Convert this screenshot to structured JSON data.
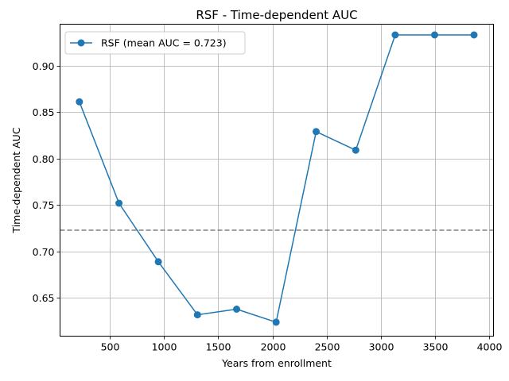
{
  "chart_data": {
    "type": "line",
    "title": "RSF - Time-dependent AUC",
    "xlabel": "Years from enrollment",
    "ylabel": "Time-dependent AUC",
    "xlim": [
      40,
      4040
    ],
    "ylim": [
      0.609,
      0.9445
    ],
    "xticks": [
      500,
      1000,
      1500,
      2000,
      2500,
      3000,
      3500,
      4000
    ],
    "xtick_labels": [
      "500",
      "1000",
      "1500",
      "2000",
      "2500",
      "3000",
      "3500",
      "4000"
    ],
    "yticks": [
      0.65,
      0.7,
      0.75,
      0.8,
      0.85,
      0.9
    ],
    "ytick_labels": [
      "0.65",
      "0.70",
      "0.75",
      "0.80",
      "0.85",
      "0.90"
    ],
    "grid": true,
    "legend_position": "top-left",
    "series": [
      {
        "name": "RSF (mean AUC = 0.723)",
        "color": "#1f77b4",
        "marker": "circle",
        "x": [
          218,
          584,
          947,
          1308,
          1669,
          2034,
          2403,
          2769,
          3133,
          3497,
          3860
        ],
        "y": [
          0.861,
          0.752,
          0.689,
          0.632,
          0.638,
          0.624,
          0.829,
          0.809,
          0.933,
          0.933,
          0.933
        ]
      }
    ],
    "reference_line": {
      "y": 0.723,
      "color": "#808080",
      "style": "dashed"
    }
  }
}
